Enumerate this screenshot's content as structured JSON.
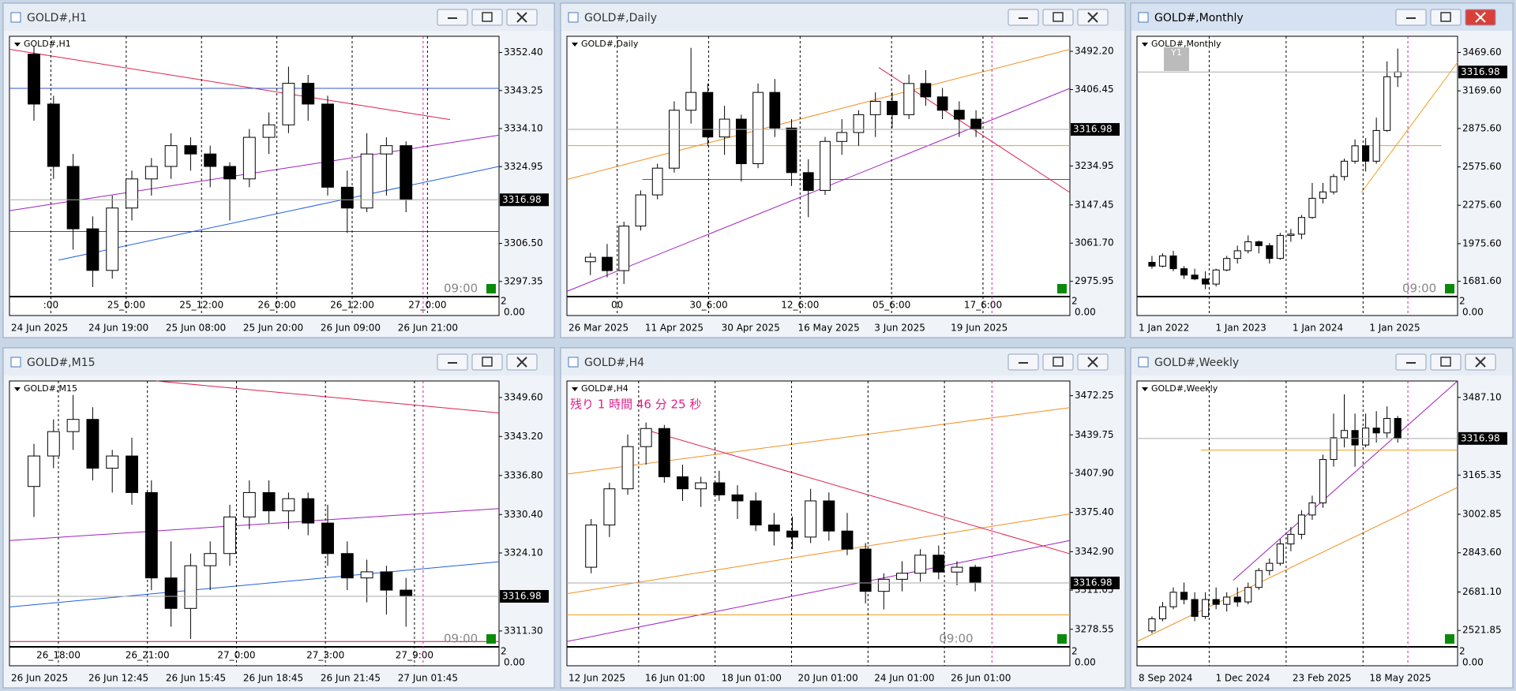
{
  "windows": [
    {
      "title": "GOLD#,H1",
      "symbol": "GOLD#,H1",
      "ylim": [
        3293.7,
        3356.3
      ],
      "yticks": [
        {
          "value": 3352.4,
          "label": "3352.40"
        },
        3343.25,
        {
          "value": 3334.1,
          "label": "3334.10"
        },
        3324.95,
        {
          "value": 3306.5,
          "label": "3306.50"
        },
        3297.35
      ],
      "price": 3316.98,
      "xlabels": [
        "24 Jun 2025",
        "24 Jun 19:00",
        "25 Jun 08:00",
        "25 Jun 20:00",
        "26 Jun 09:00",
        "26 Jun 21:00"
      ],
      "grid_labels": [
        ":00",
        "25_0:00",
        "25_12:00",
        "26_0:00",
        "26_12:00",
        "27_0:00"
      ],
      "clock": "09:00",
      "sub_scale": [
        "2",
        "0.00"
      ],
      "candles": [
        [
          3352,
          3354,
          3336,
          3340
        ],
        [
          3340,
          3342,
          3322,
          3325
        ],
        [
          3325,
          3328,
          3305,
          3310
        ],
        [
          3310,
          3313,
          3296,
          3300
        ],
        [
          3300,
          3318,
          3298,
          3315
        ],
        [
          3315,
          3324,
          3312,
          3322
        ],
        [
          3322,
          3327,
          3318,
          3325
        ],
        [
          3325,
          3333,
          3322,
          3330
        ],
        [
          3330,
          3332,
          3324,
          3328
        ],
        [
          3328,
          3330,
          3320,
          3325
        ],
        [
          3325,
          3326,
          3312,
          3322
        ],
        [
          3322,
          3334,
          3320,
          3332
        ],
        [
          3332,
          3338,
          3328,
          3335
        ],
        [
          3335,
          3349,
          3333,
          3345
        ],
        [
          3345,
          3347,
          3336,
          3340
        ],
        [
          3340,
          3342,
          3318,
          3320
        ],
        [
          3320,
          3324,
          3309,
          3315
        ],
        [
          3315,
          3333,
          3314,
          3328
        ],
        [
          3328,
          3332,
          3318,
          3330
        ],
        [
          3330,
          3331,
          3314,
          3317
        ]
      ]
    },
    {
      "title": "GOLD#,Daily",
      "symbol": "GOLD#,Daily",
      "ylim": [
        2941.7,
        3526
      ],
      "yticks": [
        {
          "value": 3492.2,
          "label": "3492.20"
        },
        3406.45,
        3234.95,
        3147.45,
        {
          "value": 3061.7,
          "label": "3061.70"
        },
        2975.95
      ],
      "price": 3316.98,
      "xlabels": [
        "26 Mar 2025",
        "11 Apr 2025",
        "30 Apr 2025",
        "16 May 2025",
        "3 Jun 2025",
        "19 Jun 2025"
      ],
      "grid_labels": [
        "00",
        "30_6:00",
        "12_6:00",
        "05_6:00",
        "17_6:00"
      ],
      "sub_scale": [
        "2",
        "0.00"
      ],
      "candles": [
        [
          3020,
          3040,
          2990,
          3030
        ],
        [
          3030,
          3060,
          2985,
          3000
        ],
        [
          3000,
          3110,
          2970,
          3100
        ],
        [
          3100,
          3180,
          3090,
          3170
        ],
        [
          3170,
          3240,
          3160,
          3230
        ],
        [
          3230,
          3380,
          3220,
          3360
        ],
        [
          3360,
          3500,
          3330,
          3400
        ],
        [
          3400,
          3420,
          3280,
          3300
        ],
        [
          3300,
          3370,
          3260,
          3340
        ],
        [
          3340,
          3350,
          3200,
          3240
        ],
        [
          3240,
          3420,
          3230,
          3400
        ],
        [
          3400,
          3430,
          3300,
          3320
        ],
        [
          3320,
          3340,
          3190,
          3220
        ],
        [
          3220,
          3250,
          3120,
          3180
        ],
        [
          3180,
          3300,
          3170,
          3290
        ],
        [
          3290,
          3340,
          3260,
          3310
        ],
        [
          3310,
          3360,
          3280,
          3350
        ],
        [
          3350,
          3400,
          3300,
          3380
        ],
        [
          3380,
          3400,
          3320,
          3350
        ],
        [
          3350,
          3440,
          3340,
          3420
        ],
        [
          3420,
          3450,
          3370,
          3390
        ],
        [
          3390,
          3410,
          3340,
          3360
        ],
        [
          3360,
          3380,
          3300,
          3340
        ],
        [
          3340,
          3360,
          3300,
          3317
        ]
      ]
    },
    {
      "title": "GOLD#,Monthly",
      "symbol": "GOLD#,Monthly",
      "ylim": [
        1562,
        3596
      ],
      "yticks": [
        {
          "value": 3469.6,
          "label": "3469.60"
        },
        {
          "value": 3169.6,
          "label": "3169.60"
        },
        {
          "value": 2875.6,
          "label": "2875.60"
        },
        {
          "value": 2575.6,
          "label": "2575.60"
        },
        {
          "value": 2275.6,
          "label": "2275.60"
        },
        {
          "value": 1975.6,
          "label": "1975.60"
        },
        {
          "value": 1681.6,
          "label": "1681.60"
        }
      ],
      "price": 3316.98,
      "xlabels": [
        "1 Jan 2022",
        "1 Jan 2023",
        "1 Jan 2024",
        "1 Jan 2025"
      ],
      "badge": "Y1",
      "clock": "09:00",
      "sub_scale": [
        "2",
        "0.00"
      ],
      "candles": [
        [
          1830,
          1880,
          1780,
          1800
        ],
        [
          1800,
          1900,
          1790,
          1880
        ],
        [
          1880,
          1920,
          1760,
          1780
        ],
        [
          1780,
          1800,
          1700,
          1730
        ],
        [
          1730,
          1780,
          1690,
          1700
        ],
        [
          1700,
          1760,
          1620,
          1660
        ],
        [
          1660,
          1780,
          1640,
          1770
        ],
        [
          1770,
          1880,
          1760,
          1860
        ],
        [
          1860,
          1960,
          1820,
          1920
        ],
        [
          1920,
          2040,
          1900,
          1990
        ],
        [
          1990,
          2000,
          1900,
          1960
        ],
        [
          1960,
          1980,
          1820,
          1860
        ],
        [
          1860,
          2060,
          1850,
          2040
        ],
        [
          2040,
          2090,
          1990,
          2050
        ],
        [
          2050,
          2200,
          2010,
          2180
        ],
        [
          2180,
          2450,
          2170,
          2330
        ],
        [
          2330,
          2450,
          2290,
          2380
        ],
        [
          2380,
          2520,
          2360,
          2500
        ],
        [
          2500,
          2640,
          2470,
          2620
        ],
        [
          2620,
          2790,
          2600,
          2740
        ],
        [
          2740,
          2800,
          2540,
          2620
        ],
        [
          2620,
          2960,
          2600,
          2860
        ],
        [
          2860,
          3400,
          2850,
          3280
        ],
        [
          3280,
          3500,
          3200,
          3317
        ]
      ]
    },
    {
      "title": "GOLD#,M15",
      "symbol": "GOLD#,M15",
      "ylim": [
        3308.7,
        3352.3
      ],
      "yticks": [
        {
          "value": 3349.6,
          "label": "3349.60"
        },
        {
          "value": 3343.2,
          "label": "3343.20"
        },
        {
          "value": 3336.8,
          "label": "3336.80"
        },
        {
          "value": 3330.4,
          "label": "3330.40"
        },
        {
          "value": 3324.1,
          "label": "3324.10"
        },
        {
          "value": 3311.3,
          "label": "3311.30"
        }
      ],
      "price": 3316.98,
      "xlabels": [
        "26 Jun 2025",
        "26 Jun 12:45",
        "26 Jun 15:45",
        "26 Jun 18:45",
        "26 Jun 21:45",
        "27 Jun 01:45"
      ],
      "grid_labels": [
        "26_18:00",
        "26_21:00",
        "27_0:00",
        "27_3:00",
        "27_9:00"
      ],
      "clock": "09:00",
      "sub_scale": [
        "2",
        "0.00"
      ],
      "candles": [
        [
          3335,
          3342,
          3330,
          3340
        ],
        [
          3340,
          3346,
          3338,
          3344
        ],
        [
          3344,
          3350,
          3341,
          3346
        ],
        [
          3346,
          3348,
          3336,
          3338
        ],
        [
          3338,
          3341,
          3334,
          3340
        ],
        [
          3340,
          3343,
          3332,
          3334
        ],
        [
          3334,
          3336,
          3318,
          3320
        ],
        [
          3320,
          3326,
          3312,
          3315
        ],
        [
          3315,
          3324,
          3310,
          3322
        ],
        [
          3322,
          3326,
          3318,
          3324
        ],
        [
          3324,
          3332,
          3322,
          3330
        ],
        [
          3330,
          3336,
          3328,
          3334
        ],
        [
          3334,
          3336,
          3329,
          3331
        ],
        [
          3331,
          3334,
          3328,
          3333
        ],
        [
          3333,
          3334,
          3327,
          3329
        ],
        [
          3329,
          3332,
          3322,
          3324
        ],
        [
          3324,
          3326,
          3318,
          3320
        ],
        [
          3320,
          3323,
          3316,
          3321
        ],
        [
          3321,
          3322,
          3314,
          3318
        ],
        [
          3318,
          3320,
          3312,
          3317
        ]
      ]
    },
    {
      "title": "GOLD#,H4",
      "symbol": "GOLD#,H4",
      "ylim": [
        3264,
        3484.4
      ],
      "yticks": [
        3472.25,
        3439.75,
        {
          "value": 3407.9,
          "label": "3407.90"
        },
        {
          "value": 3375.4,
          "label": "3375.40"
        },
        {
          "value": 3342.9,
          "label": "3342.90"
        },
        3311.05,
        3278.55
      ],
      "price": 3316.98,
      "xlabels": [
        "12 Jun 2025",
        "16 Jun 01:00",
        "18 Jun 01:00",
        "20 Jun 01:00",
        "24 Jun 01:00",
        "26 Jun 01:00"
      ],
      "countdown": "残り 1 時間 46 分 25 秒",
      "clock": "09:00",
      "sub_scale": [
        "2",
        "0.00"
      ],
      "candles": [
        [
          3330,
          3370,
          3325,
          3365
        ],
        [
          3365,
          3400,
          3355,
          3395
        ],
        [
          3395,
          3440,
          3390,
          3430
        ],
        [
          3430,
          3450,
          3415,
          3445
        ],
        [
          3445,
          3448,
          3400,
          3405
        ],
        [
          3405,
          3415,
          3385,
          3395
        ],
        [
          3395,
          3405,
          3380,
          3400
        ],
        [
          3400,
          3410,
          3385,
          3390
        ],
        [
          3390,
          3398,
          3370,
          3385
        ],
        [
          3385,
          3392,
          3360,
          3365
        ],
        [
          3365,
          3375,
          3348,
          3360
        ],
        [
          3360,
          3372,
          3345,
          3355
        ],
        [
          3355,
          3395,
          3350,
          3385
        ],
        [
          3385,
          3392,
          3352,
          3360
        ],
        [
          3360,
          3375,
          3340,
          3345
        ],
        [
          3345,
          3350,
          3300,
          3310
        ],
        [
          3310,
          3325,
          3295,
          3320
        ],
        [
          3320,
          3335,
          3310,
          3325
        ],
        [
          3325,
          3345,
          3318,
          3340
        ],
        [
          3340,
          3348,
          3320,
          3326
        ],
        [
          3326,
          3335,
          3315,
          3330
        ],
        [
          3330,
          3332,
          3310,
          3317
        ]
      ]
    },
    {
      "title": "GOLD#,Weekly",
      "symbol": "GOLD#,Weekly",
      "ylim": [
        2454,
        3555
      ],
      "yticks": [
        {
          "value": 3487.1,
          "label": "3487.10"
        },
        3165.35,
        3002.85,
        {
          "value": 2843.6,
          "label": "2843.60"
        },
        {
          "value": 2681.1,
          "label": "2681.10"
        },
        2521.85
      ],
      "price": 3316.98,
      "xlabels": [
        "8 Sep 2024",
        "1 Dec 2024",
        "23 Feb 2025",
        "18 May 2025"
      ],
      "sub_scale": [
        "2",
        "0.00"
      ],
      "candles": [
        [
          2520,
          2580,
          2510,
          2570
        ],
        [
          2570,
          2640,
          2560,
          2620
        ],
        [
          2620,
          2700,
          2610,
          2680
        ],
        [
          2680,
          2720,
          2630,
          2650
        ],
        [
          2650,
          2680,
          2560,
          2580
        ],
        [
          2580,
          2680,
          2570,
          2650
        ],
        [
          2650,
          2700,
          2610,
          2630
        ],
        [
          2630,
          2680,
          2600,
          2660
        ],
        [
          2660,
          2700,
          2620,
          2640
        ],
        [
          2640,
          2720,
          2630,
          2700
        ],
        [
          2700,
          2780,
          2690,
          2770
        ],
        [
          2770,
          2820,
          2750,
          2800
        ],
        [
          2800,
          2900,
          2790,
          2880
        ],
        [
          2880,
          2950,
          2850,
          2920
        ],
        [
          2920,
          3020,
          2900,
          3000
        ],
        [
          3000,
          3080,
          2980,
          3050
        ],
        [
          3050,
          3250,
          3030,
          3230
        ],
        [
          3230,
          3420,
          3200,
          3320
        ],
        [
          3320,
          3500,
          3280,
          3350
        ],
        [
          3350,
          3420,
          3200,
          3290
        ],
        [
          3290,
          3420,
          3280,
          3360
        ],
        [
          3360,
          3430,
          3300,
          3340
        ],
        [
          3340,
          3450,
          3320,
          3400
        ],
        [
          3400,
          3410,
          3300,
          3317
        ]
      ]
    }
  ]
}
